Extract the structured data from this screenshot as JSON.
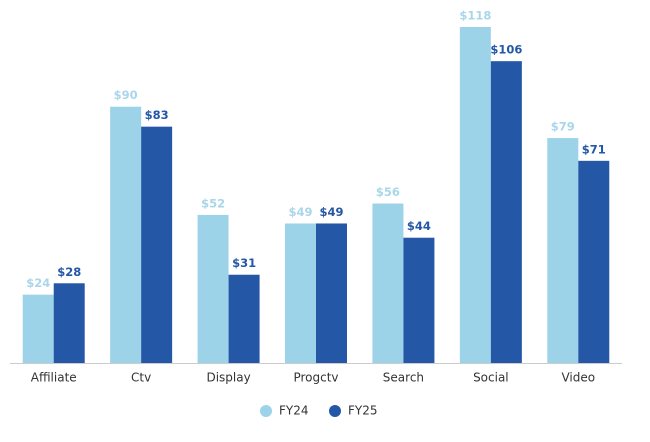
{
  "chart_data": {
    "type": "bar",
    "categories": [
      "Affiliate",
      "Ctv",
      "Display",
      "Progctv",
      "Search",
      "Social",
      "Video"
    ],
    "series": [
      {
        "name": "FY24",
        "color": "#9dd3e8",
        "values": [
          24,
          90,
          52,
          49,
          56,
          118,
          79
        ],
        "value_labels": [
          "$24",
          "$90",
          "$52",
          "$49",
          "$56",
          "$118",
          "$79"
        ]
      },
      {
        "name": "FY25",
        "color": "#2557a7",
        "values": [
          28,
          83,
          31,
          49,
          44,
          106,
          71
        ],
        "value_labels": [
          "$28",
          "$83",
          "$31",
          "$49",
          "$44",
          "$106",
          "$71"
        ]
      }
    ]
  }
}
